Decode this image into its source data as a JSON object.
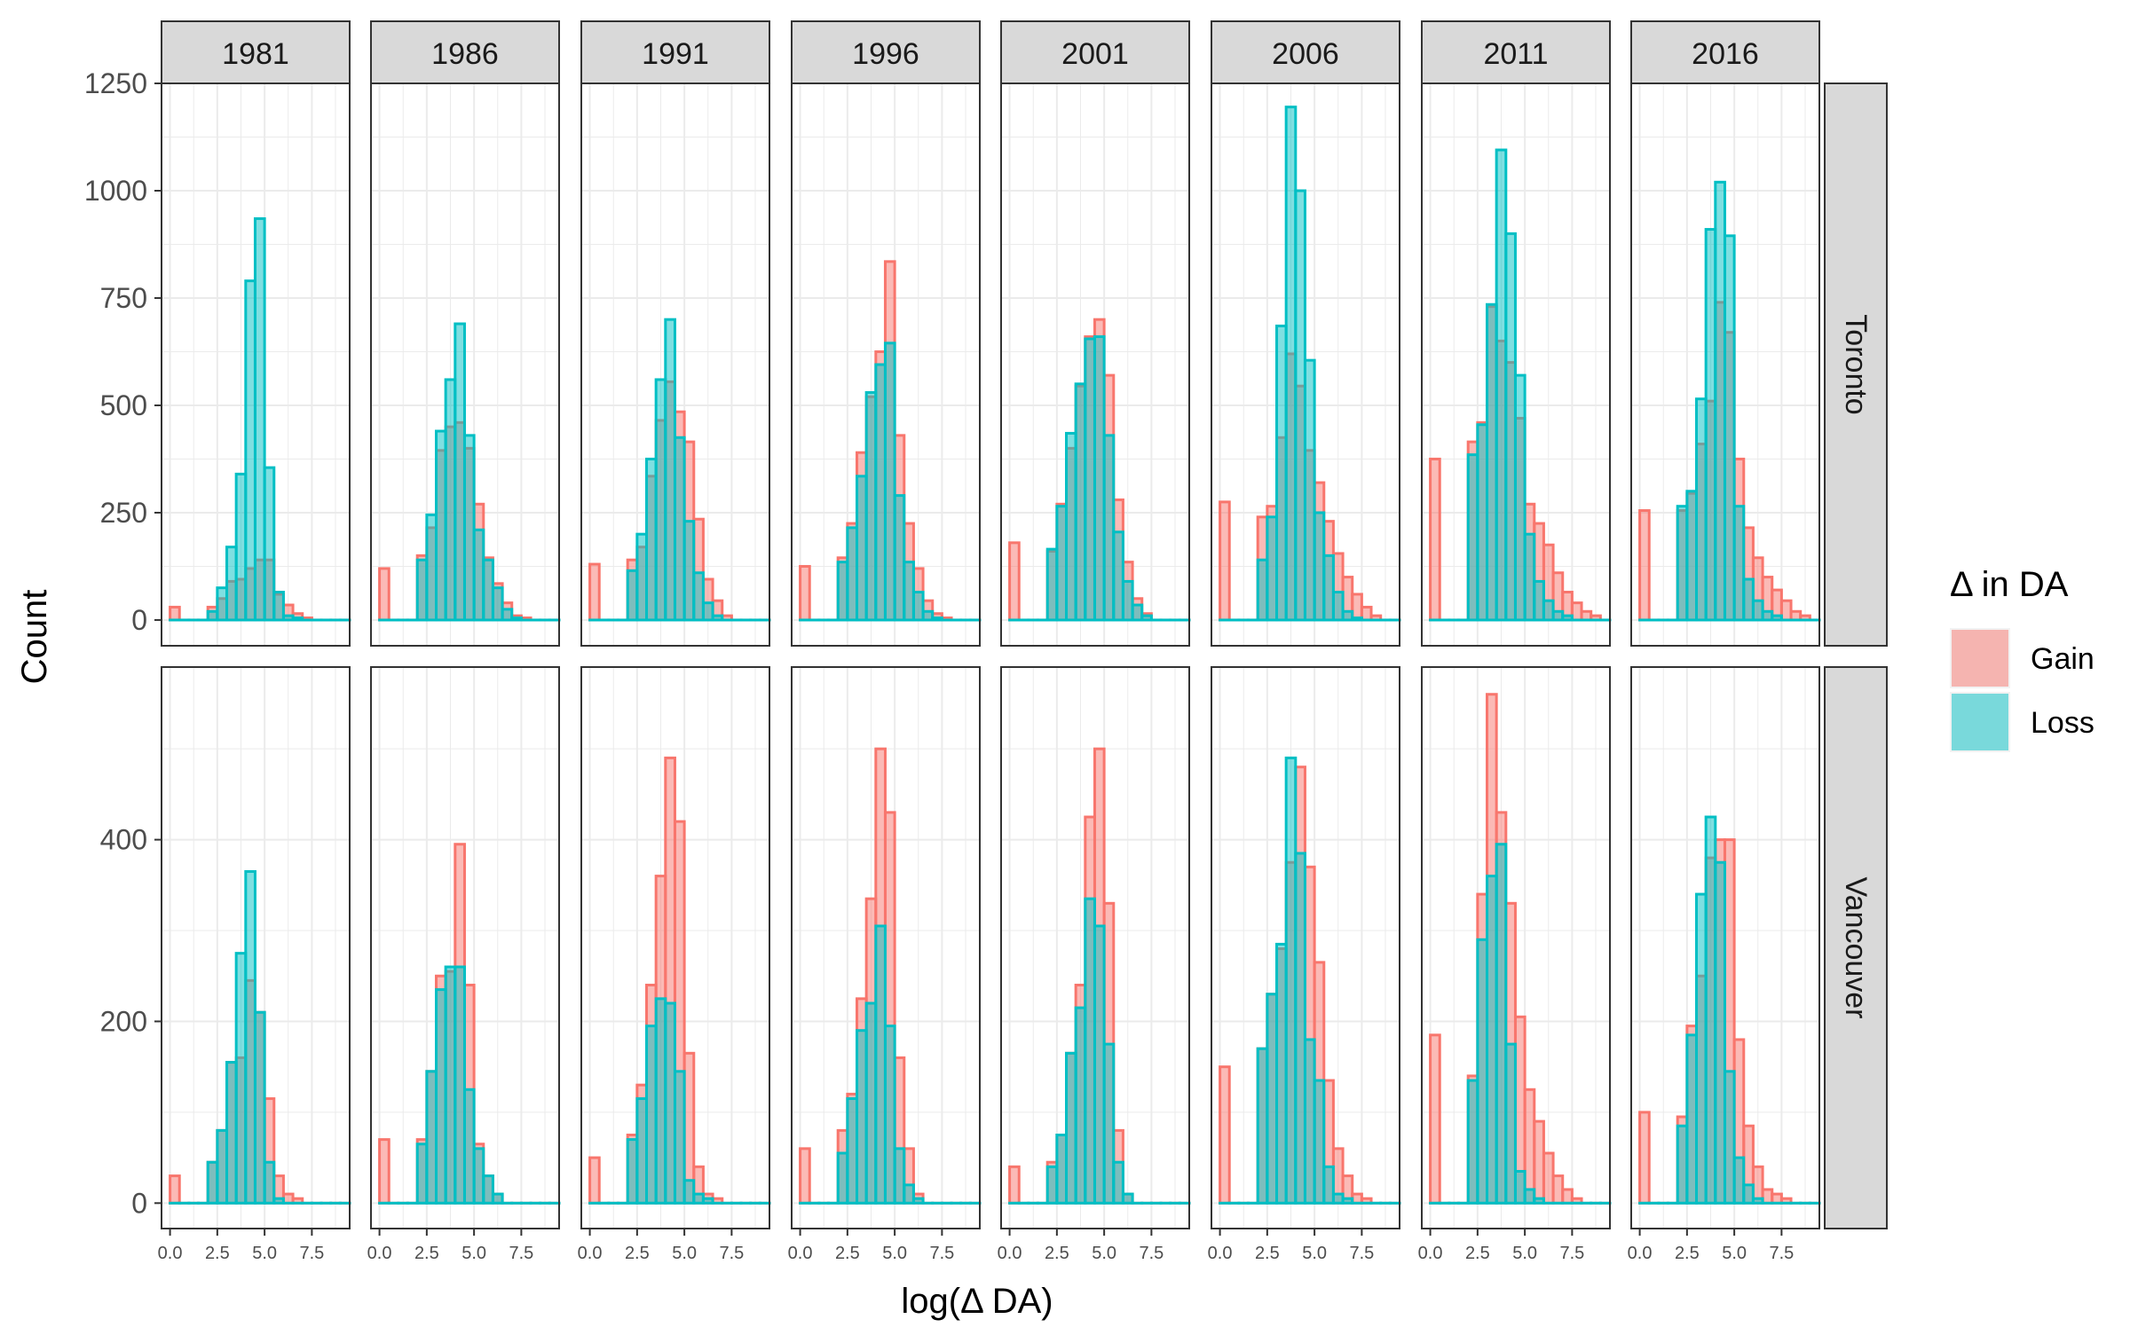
{
  "chart_data": {
    "type": "bar",
    "subtype": "faceted-histogram",
    "title": "",
    "xlabel": "log(Δ DA)",
    "ylabel": "Count",
    "legend": {
      "title": "Δ in DA",
      "position": "right",
      "entries": [
        "Gain",
        "Loss"
      ]
    },
    "colors": {
      "Gain": "#F8766D",
      "Loss": "#00BFC4",
      "strip_fill": "#D9D9D9",
      "grid": "#EBEBEB"
    },
    "grid": true,
    "overlap": "identity",
    "bar_opacity": 0.5,
    "x_ticks": [
      0,
      2.5,
      5,
      7.5
    ],
    "x_tick_labels": [
      "0.0",
      "2.5",
      "5.0",
      "7.5"
    ],
    "xlim": [
      -0.45,
      9.5
    ],
    "bin_starts": [
      0,
      0.5,
      1,
      1.5,
      2,
      2.5,
      3,
      3.5,
      4,
      4.5,
      5,
      5.5,
      6,
      6.5,
      7,
      7.5,
      8,
      8.5,
      9
    ],
    "bin_width": 0.5,
    "columns": [
      "1981",
      "1986",
      "1991",
      "1996",
      "2001",
      "2006",
      "2011",
      "2016"
    ],
    "rows": [
      {
        "name": "Toronto",
        "ylim": [
          -60,
          1250
        ],
        "y_ticks": [
          0,
          250,
          500,
          750,
          1000,
          1250
        ],
        "y_tick_labels": [
          "0",
          "250",
          "500",
          "750",
          "1000",
          "1250"
        ],
        "panels": {
          "1981": {
            "Gain": [
              30,
              0,
              0,
              0,
              30,
              50,
              90,
              95,
              120,
              140,
              140,
              60,
              35,
              15,
              5,
              0,
              0,
              0,
              0
            ],
            "Loss": [
              0,
              0,
              0,
              0,
              20,
              75,
              170,
              340,
              790,
              935,
              355,
              65,
              10,
              5,
              0,
              0,
              0,
              0,
              0
            ]
          },
          "1986": {
            "Gain": [
              120,
              0,
              0,
              0,
              150,
              215,
              395,
              450,
              460,
              400,
              270,
              145,
              85,
              40,
              10,
              5,
              0,
              0,
              0
            ],
            "Loss": [
              0,
              0,
              0,
              0,
              140,
              245,
              440,
              560,
              690,
              430,
              210,
              140,
              75,
              25,
              5,
              0,
              0,
              0,
              0
            ]
          },
          "1991": {
            "Gain": [
              130,
              0,
              0,
              0,
              140,
              170,
              335,
              465,
              555,
              485,
              415,
              235,
              95,
              45,
              10,
              0,
              0,
              0,
              0
            ],
            "Loss": [
              0,
              0,
              0,
              0,
              115,
              200,
              375,
              560,
              700,
              425,
              230,
              110,
              40,
              10,
              0,
              0,
              0,
              0,
              0
            ]
          },
          "1996": {
            "Gain": [
              125,
              0,
              0,
              0,
              145,
              225,
              390,
              520,
              625,
              835,
              430,
              225,
              120,
              45,
              15,
              5,
              0,
              0,
              0
            ],
            "Loss": [
              0,
              0,
              0,
              0,
              135,
              215,
              335,
              530,
              595,
              645,
              290,
              135,
              65,
              20,
              5,
              0,
              0,
              0,
              0
            ]
          },
          "2001": {
            "Gain": [
              180,
              0,
              0,
              0,
              160,
              270,
              400,
              545,
              660,
              700,
              570,
              280,
              135,
              50,
              15,
              0,
              0,
              0,
              0
            ],
            "Loss": [
              0,
              0,
              0,
              0,
              165,
              265,
              435,
              550,
              655,
              660,
              430,
              205,
              90,
              35,
              10,
              0,
              0,
              0,
              0
            ]
          },
          "2006": {
            "Gain": [
              275,
              0,
              0,
              0,
              240,
              265,
              425,
              620,
              545,
              395,
              320,
              230,
              155,
              100,
              60,
              30,
              10,
              0,
              0
            ],
            "Loss": [
              0,
              0,
              0,
              0,
              140,
              240,
              685,
              1195,
              1000,
              605,
              250,
              150,
              65,
              20,
              5,
              0,
              0,
              0,
              0
            ]
          },
          "2011": {
            "Gain": [
              375,
              0,
              0,
              0,
              415,
              460,
              730,
              650,
              600,
              470,
              270,
              225,
              175,
              110,
              65,
              40,
              20,
              10,
              0
            ],
            "Loss": [
              0,
              0,
              0,
              0,
              385,
              455,
              735,
              1095,
              900,
              570,
              200,
              90,
              45,
              20,
              10,
              0,
              0,
              0,
              0
            ]
          },
          "2016": {
            "Gain": [
              255,
              0,
              0,
              0,
              255,
              295,
              410,
              510,
              740,
              670,
              375,
              215,
              145,
              100,
              70,
              45,
              20,
              10,
              0
            ],
            "Loss": [
              0,
              0,
              0,
              0,
              265,
              300,
              515,
              910,
              1020,
              895,
              265,
              95,
              45,
              20,
              10,
              0,
              0,
              0,
              0
            ]
          }
        }
      },
      {
        "name": "Vancouver",
        "ylim": [
          -28,
          590
        ],
        "y_ticks": [
          0,
          200,
          400
        ],
        "y_tick_labels": [
          "0",
          "200",
          "400"
        ],
        "panels": {
          "1981": {
            "Gain": [
              30,
              0,
              0,
              0,
              45,
              80,
              155,
              160,
              245,
              210,
              115,
              30,
              10,
              5,
              0,
              0,
              0,
              0,
              0
            ],
            "Loss": [
              0,
              0,
              0,
              0,
              45,
              80,
              155,
              275,
              365,
              210,
              45,
              5,
              0,
              0,
              0,
              0,
              0,
              0,
              0
            ]
          },
          "1986": {
            "Gain": [
              70,
              0,
              0,
              0,
              70,
              145,
              250,
              255,
              395,
              240,
              65,
              30,
              10,
              0,
              0,
              0,
              0,
              0,
              0
            ],
            "Loss": [
              0,
              0,
              0,
              0,
              65,
              145,
              235,
              260,
              260,
              125,
              60,
              30,
              10,
              0,
              0,
              0,
              0,
              0,
              0
            ]
          },
          "1991": {
            "Gain": [
              50,
              0,
              0,
              0,
              75,
              130,
              240,
              360,
              490,
              420,
              165,
              40,
              10,
              5,
              0,
              0,
              0,
              0,
              0
            ],
            "Loss": [
              0,
              0,
              0,
              0,
              70,
              115,
              195,
              225,
              220,
              145,
              25,
              10,
              5,
              0,
              0,
              0,
              0,
              0,
              0
            ]
          },
          "1996": {
            "Gain": [
              60,
              0,
              0,
              0,
              80,
              120,
              225,
              335,
              500,
              430,
              160,
              60,
              10,
              0,
              0,
              0,
              0,
              0,
              0
            ],
            "Loss": [
              0,
              0,
              0,
              0,
              55,
              115,
              190,
              220,
              305,
              195,
              60,
              20,
              5,
              0,
              0,
              0,
              0,
              0,
              0
            ]
          },
          "2001": {
            "Gain": [
              40,
              0,
              0,
              0,
              45,
              75,
              165,
              240,
              425,
              500,
              330,
              80,
              10,
              0,
              0,
              0,
              0,
              0,
              0
            ],
            "Loss": [
              0,
              0,
              0,
              0,
              40,
              75,
              165,
              215,
              335,
              305,
              175,
              45,
              10,
              0,
              0,
              0,
              0,
              0,
              0
            ]
          },
          "2006": {
            "Gain": [
              150,
              0,
              0,
              0,
              170,
              230,
              280,
              375,
              480,
              370,
              265,
              135,
              60,
              30,
              10,
              5,
              0,
              0,
              0
            ],
            "Loss": [
              0,
              0,
              0,
              0,
              170,
              230,
              285,
              490,
              385,
              180,
              135,
              40,
              10,
              5,
              0,
              0,
              0,
              0,
              0
            ]
          },
          "2011": {
            "Gain": [
              185,
              0,
              0,
              0,
              140,
              340,
              560,
              430,
              330,
              205,
              125,
              90,
              55,
              30,
              15,
              5,
              0,
              0,
              0
            ],
            "Loss": [
              0,
              0,
              0,
              0,
              135,
              290,
              360,
              395,
              175,
              35,
              15,
              5,
              0,
              0,
              0,
              0,
              0,
              0,
              0
            ]
          },
          "2016": {
            "Gain": [
              100,
              0,
              0,
              0,
              95,
              195,
              250,
              380,
              400,
              400,
              180,
              85,
              40,
              15,
              10,
              5,
              0,
              0,
              0
            ],
            "Loss": [
              0,
              0,
              0,
              0,
              85,
              185,
              340,
              425,
              375,
              145,
              50,
              20,
              5,
              0,
              0,
              0,
              0,
              0,
              0
            ]
          }
        }
      }
    ]
  }
}
